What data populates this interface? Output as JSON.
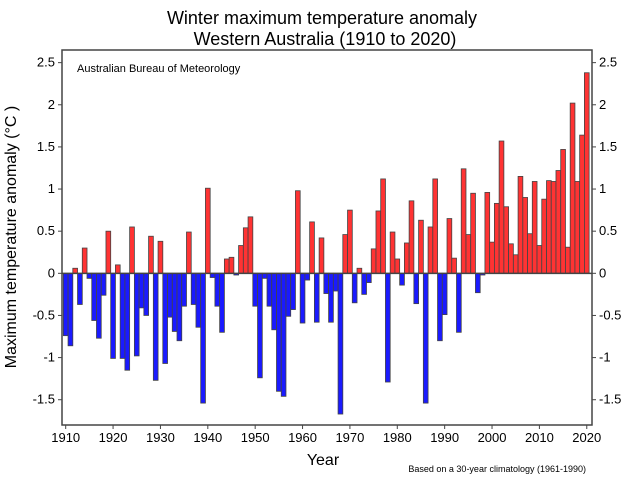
{
  "chart_data": {
    "type": "bar",
    "title": "Winter maximum temperature anomaly",
    "subtitle": "Western Australia (1910 to 2020)",
    "xlabel": "Year",
    "ylabel": "Maximum temperature anomaly (°C )",
    "annotation": "Australian Bureau of Meteorology",
    "footnote": "Based on a 30-year climatology (1961-1990)",
    "xlim": [
      1910,
      2020
    ],
    "ylim": [
      -1.8,
      2.65
    ],
    "x_ticks": [
      1910,
      1920,
      1930,
      1940,
      1950,
      1960,
      1970,
      1980,
      1990,
      2000,
      2010,
      2020
    ],
    "y_ticks": [
      2.5,
      2,
      1.5,
      1,
      0.5,
      0,
      -0.5,
      -1,
      -1.5
    ],
    "grid": false,
    "colors": {
      "positive": "#ff3333",
      "negative": "#1a1aff",
      "outline": "#444444"
    },
    "x_start": 1910,
    "values": [
      -0.74,
      -0.86,
      0.06,
      -0.37,
      0.3,
      -0.06,
      -0.56,
      -0.77,
      -0.26,
      0.5,
      -1.01,
      0.1,
      -1.01,
      -1.15,
      0.55,
      -0.98,
      -0.41,
      -0.5,
      0.44,
      -1.27,
      0.38,
      -1.07,
      -0.52,
      -0.69,
      -0.8,
      -0.39,
      0.49,
      -0.37,
      -0.64,
      -1.54,
      1.01,
      -0.05,
      -0.39,
      -0.7,
      0.17,
      0.19,
      -0.02,
      0.33,
      0.54,
      0.67,
      -0.39,
      -1.24,
      -0.06,
      -0.39,
      -0.67,
      -1.4,
      -1.46,
      -0.51,
      -0.43,
      0.98,
      -0.59,
      -0.08,
      0.61,
      -0.58,
      0.42,
      -0.24,
      -0.58,
      -0.21,
      -1.67,
      0.46,
      0.75,
      -0.35,
      0.06,
      -0.25,
      -0.11,
      0.29,
      0.74,
      1.12,
      -1.29,
      0.49,
      0.17,
      -0.14,
      0.36,
      0.86,
      -0.36,
      0.63,
      -1.54,
      0.55,
      1.12,
      -0.8,
      -0.49,
      0.65,
      0.18,
      -0.7,
      1.24,
      0.46,
      0.95,
      -0.23,
      -0.02,
      0.96,
      0.37,
      0.83,
      1.57,
      0.79,
      0.35,
      0.22,
      1.15,
      0.9,
      0.47,
      1.09,
      0.33,
      0.88,
      1.1,
      1.09,
      1.22,
      1.47,
      0.31,
      2.02,
      1.09,
      1.64,
      2.38
    ]
  }
}
